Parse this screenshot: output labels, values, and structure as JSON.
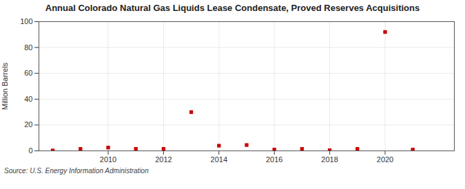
{
  "chart_data": {
    "type": "scatter",
    "title": "Annual Colorado Natural Gas Liquids Lease Condensate, Proved Reserves Acquisitions",
    "ylabel": "Million Barrels",
    "annotation": "Source: U.S. Energy Information Administration",
    "x": [
      2008,
      2009,
      2010,
      2011,
      2012,
      2013,
      2014,
      2015,
      2016,
      2017,
      2018,
      2019,
      2020,
      2021
    ],
    "values": [
      0.3,
      1.5,
      2.5,
      1.5,
      1.5,
      30.0,
      4.0,
      4.5,
      1.0,
      1.5,
      0.5,
      1.5,
      92.0,
      1.0
    ],
    "color": "#cc0000",
    "marker": "square",
    "xlim": [
      2007.5,
      2022.5
    ],
    "xticks": [
      2010,
      2012,
      2014,
      2016,
      2018,
      2020
    ],
    "ylim": [
      0,
      100
    ],
    "yticks": [
      0,
      20,
      40,
      60,
      80,
      100
    ],
    "grid": true
  }
}
